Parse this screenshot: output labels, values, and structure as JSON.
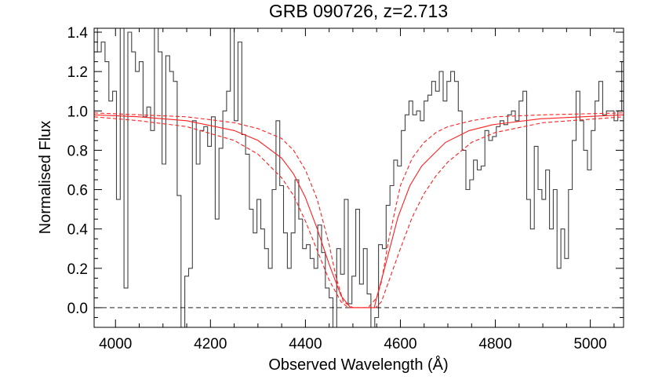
{
  "chart_data": {
    "type": "line",
    "title": "GRB 090726, z=2.713",
    "xlabel": "Observed Wavelength (Å)",
    "ylabel": "Normalised Flux",
    "xlim": [
      3955,
      5070
    ],
    "ylim": [
      -0.1,
      1.42
    ],
    "xticks": [
      4000,
      4200,
      4400,
      4600,
      4800,
      5000
    ],
    "yticks": [
      0.0,
      0.2,
      0.4,
      0.6,
      0.8,
      1.0,
      1.2,
      1.4
    ],
    "ytick_labels": [
      "0.0",
      "0.2",
      "0.4",
      "0.6",
      "0.8",
      "1.0",
      "1.2",
      "1.4"
    ],
    "grid": false,
    "colors": {
      "spectrum": "#404040",
      "model": "#ff2020",
      "zero_line": "#000000",
      "axes": "#000000"
    },
    "spectrum_step": {
      "x": [
        3955,
        3962,
        3970,
        3978,
        3986,
        3994,
        4002,
        4010,
        4018,
        4026,
        4034,
        4042,
        4050,
        4058,
        4066,
        4074,
        4082,
        4090,
        4098,
        4106,
        4114,
        4122,
        4130,
        4138,
        4146,
        4154,
        4162,
        4170,
        4178,
        4186,
        4194,
        4202,
        4210,
        4218,
        4226,
        4234,
        4242,
        4250,
        4258,
        4266,
        4274,
        4282,
        4290,
        4298,
        4306,
        4314,
        4322,
        4330,
        4338,
        4346,
        4354,
        4362,
        4370,
        4378,
        4386,
        4394,
        4402,
        4410,
        4418,
        4426,
        4434,
        4442,
        4450,
        4458,
        4466,
        4474,
        4482,
        4490,
        4498,
        4506,
        4514,
        4522,
        4530,
        4538,
        4546,
        4554,
        4562,
        4570,
        4578,
        4586,
        4594,
        4602,
        4610,
        4618,
        4626,
        4634,
        4642,
        4650,
        4658,
        4666,
        4674,
        4682,
        4690,
        4698,
        4706,
        4714,
        4722,
        4730,
        4738,
        4746,
        4754,
        4762,
        4770,
        4778,
        4786,
        4794,
        4802,
        4810,
        4818,
        4826,
        4834,
        4842,
        4850,
        4858,
        4866,
        4874,
        4882,
        4890,
        4898,
        4906,
        4914,
        4922,
        4930,
        4938,
        4946,
        4954,
        4962,
        4970,
        4978,
        4986,
        4994,
        5002,
        5010,
        5018,
        5026,
        5034,
        5042,
        5050,
        5058,
        5066,
        5070
      ],
      "y": [
        1.5,
        1.3,
        1.35,
        1.25,
        1.05,
        1.1,
        0.55,
        1.42,
        0.1,
        1.4,
        1.3,
        1.2,
        1.25,
        0.97,
        1.02,
        0.9,
        1.45,
        1.3,
        0.73,
        1.28,
        1.2,
        1.15,
        0.57,
        -0.2,
        0.16,
        0.2,
        0.95,
        0.73,
        0.9,
        0.92,
        0.82,
        0.97,
        0.45,
        0.81,
        1.0,
        1.1,
        1.45,
        0.95,
        1.35,
        0.88,
        0.78,
        0.5,
        0.38,
        0.55,
        0.4,
        0.3,
        0.2,
        0.6,
        0.95,
        0.62,
        0.38,
        0.2,
        0.38,
        0.65,
        0.45,
        0.3,
        0.32,
        0.25,
        0.2,
        0.42,
        0.28,
        0.1,
        0.05,
        -0.15,
        0.3,
        0.17,
        0.55,
        0.02,
        0.16,
        0.5,
        0.12,
        0.3,
        0.07,
        -0.1,
        -0.05,
        0.32,
        0.3,
        0.52,
        0.62,
        0.75,
        0.72,
        0.9,
        0.98,
        1.05,
        0.98,
        1.0,
        0.95,
        1.05,
        1.08,
        1.15,
        1.1,
        1.2,
        1.05,
        1.15,
        1.2,
        1.15,
        1.0,
        0.8,
        0.6,
        0.65,
        0.75,
        0.7,
        0.72,
        0.9,
        0.85,
        0.87,
        0.92,
        0.95,
        0.93,
        0.98,
        1.0,
        0.95,
        1.05,
        1.1,
        0.55,
        0.4,
        0.82,
        0.6,
        0.55,
        0.7,
        0.4,
        0.6,
        0.2,
        0.4,
        0.25,
        0.6,
        0.85,
        1.1,
        0.95,
        0.8,
        0.7,
        0.9,
        1.05,
        1.15,
        0.98,
        1.0,
        1.0,
        0.95,
        1.0,
        1.25,
        1.25
      ]
    },
    "series": [
      {
        "style": "solid",
        "x": [
          3955,
          4050,
          4150,
          4250,
          4300,
          4350,
          4375,
          4400,
          4425,
          4450,
          4475,
          4495,
          4500,
          4540,
          4545,
          4550,
          4570,
          4595,
          4620,
          4645,
          4670,
          4695,
          4745,
          4795,
          4895,
          5070
        ],
        "y": [
          0.98,
          0.97,
          0.95,
          0.9,
          0.85,
          0.76,
          0.68,
          0.56,
          0.4,
          0.22,
          0.06,
          0.0,
          0.0,
          0.0,
          0.0,
          0.05,
          0.23,
          0.46,
          0.62,
          0.72,
          0.78,
          0.84,
          0.9,
          0.93,
          0.96,
          0.98
        ]
      },
      {
        "style": "dashed",
        "x": [
          3955,
          4050,
          4150,
          4250,
          4300,
          4350,
          4375,
          4400,
          4425,
          4450,
          4465,
          4480,
          4500,
          4532,
          4550,
          4560,
          4575,
          4600,
          4625,
          4650,
          4675,
          4700,
          4750,
          4800,
          4900,
          5070
        ],
        "y": [
          0.99,
          0.98,
          0.97,
          0.94,
          0.91,
          0.86,
          0.8,
          0.7,
          0.55,
          0.32,
          0.15,
          0.03,
          0.0,
          0.0,
          0.05,
          0.13,
          0.34,
          0.62,
          0.76,
          0.84,
          0.89,
          0.92,
          0.95,
          0.97,
          0.98,
          0.99
        ]
      },
      {
        "style": "dashed",
        "x": [
          3955,
          4050,
          4150,
          4250,
          4300,
          4350,
          4375,
          4400,
          4425,
          4450,
          4475,
          4490,
          4500,
          4548,
          4560,
          4575,
          4600,
          4625,
          4650,
          4675,
          4700,
          4750,
          4800,
          4900,
          5070
        ],
        "y": [
          0.97,
          0.95,
          0.92,
          0.85,
          0.78,
          0.66,
          0.57,
          0.44,
          0.29,
          0.14,
          0.03,
          0.0,
          0.0,
          0.0,
          0.03,
          0.13,
          0.3,
          0.46,
          0.58,
          0.67,
          0.74,
          0.84,
          0.89,
          0.94,
          0.97
        ]
      }
    ],
    "reference_line": {
      "y": 0.0,
      "style": "dashed"
    }
  }
}
